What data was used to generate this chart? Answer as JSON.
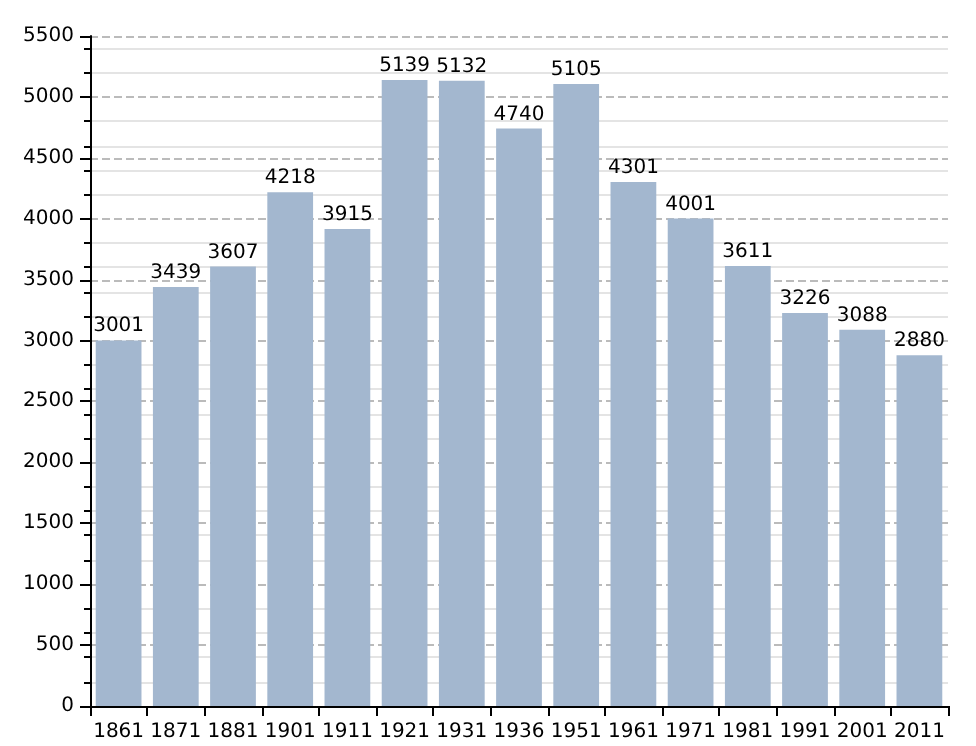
{
  "chart_data": {
    "type": "bar",
    "categories": [
      "1861",
      "1871",
      "1881",
      "1901",
      "1911",
      "1921",
      "1931",
      "1936",
      "1951",
      "1961",
      "1971",
      "1981",
      "1991",
      "2001",
      "2011"
    ],
    "values": [
      3001,
      3439,
      3607,
      4218,
      3915,
      5139,
      5132,
      4740,
      5105,
      4301,
      4001,
      3611,
      3226,
      3088,
      2880
    ],
    "color": "#a3b7cf",
    "ylim": [
      0,
      5500
    ],
    "yticks": [
      0,
      500,
      1000,
      1500,
      2000,
      2500,
      3000,
      3500,
      4000,
      4500,
      5000,
      5500
    ],
    "grid": "y",
    "data_labels": true
  }
}
